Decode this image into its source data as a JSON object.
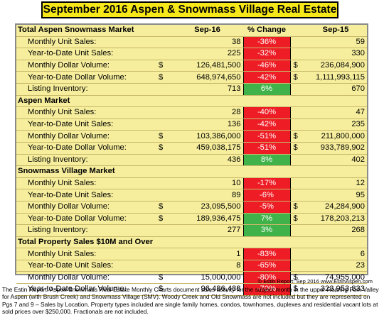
{
  "title": "September 2016 Aspen & Snowmass Village Real Estate",
  "colors": {
    "title_bg": "#f6e71a",
    "table_bg": "#f6ee9c",
    "negative": "#ee1c24",
    "positive": "#3fb34a"
  },
  "sections": [
    {
      "heading": "Total Aspen Snowmass Market",
      "col_current": "Sep-16",
      "col_change": "% Change",
      "col_prior": "Sep-15",
      "rows": [
        {
          "label": "Monthly Unit Sales:",
          "cur_sym": "",
          "current": "38",
          "change": "-36%",
          "trend": "neg",
          "prior_sym": "",
          "prior": "59"
        },
        {
          "label": "Year-to-Date Unit Sales:",
          "cur_sym": "",
          "current": "225",
          "change": "-32%",
          "trend": "neg",
          "prior_sym": "",
          "prior": "330"
        },
        {
          "label": "Monthly Dollar Volume:",
          "cur_sym": "$",
          "current": "126,481,500",
          "change": "-46%",
          "trend": "neg",
          "prior_sym": "$",
          "prior": "236,084,900"
        },
        {
          "label": "Year-to-Date Dollar Volume:",
          "cur_sym": "$",
          "current": "648,974,650",
          "change": "-42%",
          "trend": "neg",
          "prior_sym": "$",
          "prior": "1,111,993,115"
        },
        {
          "label": "Listing Inventory:",
          "cur_sym": "",
          "current": "713",
          "change": "6%",
          "trend": "pos",
          "prior_sym": "",
          "prior": "670"
        }
      ]
    },
    {
      "heading": "Aspen Market",
      "col_current": "",
      "col_change": "",
      "col_prior": "",
      "rows": [
        {
          "label": "Monthly Unit Sales:",
          "cur_sym": "",
          "current": "28",
          "change": "-40%",
          "trend": "neg",
          "prior_sym": "",
          "prior": "47"
        },
        {
          "label": "Year-to-Date Unit Sales:",
          "cur_sym": "",
          "current": "136",
          "change": "-42%",
          "trend": "neg",
          "prior_sym": "",
          "prior": "235"
        },
        {
          "label": "Monthly Dollar Volume:",
          "cur_sym": "$",
          "current": "103,386,000",
          "change": "-51%",
          "trend": "neg",
          "prior_sym": "$",
          "prior": "211,800,000"
        },
        {
          "label": "Year-to-Date Dollar Volume:",
          "cur_sym": "$",
          "current": "459,038,175",
          "change": "-51%",
          "trend": "neg",
          "prior_sym": "$",
          "prior": "933,789,902"
        },
        {
          "label": "Listing Inventory:",
          "cur_sym": "",
          "current": "436",
          "change": "8%",
          "trend": "pos",
          "prior_sym": "",
          "prior": "402"
        }
      ]
    },
    {
      "heading": "Snowmass Village Market",
      "col_current": "",
      "col_change": "",
      "col_prior": "",
      "rows": [
        {
          "label": "Monthly Unit Sales:",
          "cur_sym": "",
          "current": "10",
          "change": "-17%",
          "trend": "neg",
          "prior_sym": "",
          "prior": "12"
        },
        {
          "label": "Year-to-Date Unit Sales:",
          "cur_sym": "",
          "current": "89",
          "change": "-6%",
          "trend": "neg",
          "prior_sym": "",
          "prior": "95"
        },
        {
          "label": "Monthly Dollar Volume:",
          "cur_sym": "$",
          "current": "23,095,500",
          "change": "-5%",
          "trend": "neg",
          "prior_sym": "$",
          "prior": "24,284,900"
        },
        {
          "label": "Year-to-Date Dollar Volume:",
          "cur_sym": "$",
          "current": "189,936,475",
          "change": "7%",
          "trend": "pos",
          "prior_sym": "$",
          "prior": "178,203,213"
        },
        {
          "label": "Listing Inventory:",
          "cur_sym": "",
          "current": "277",
          "change": "3%",
          "trend": "pos",
          "prior_sym": "",
          "prior": "268"
        }
      ]
    },
    {
      "heading": "Total Property Sales $10M and Over",
      "col_current": "",
      "col_change": "",
      "col_prior": "",
      "rows": [
        {
          "label": "Monthly Unit Sales:",
          "cur_sym": "",
          "current": "1",
          "change": "-83%",
          "trend": "neg",
          "prior_sym": "",
          "prior": "6"
        },
        {
          "label": "Year-to-Date Unit Sales:",
          "cur_sym": "",
          "current": "8",
          "change": "-65%",
          "trend": "neg",
          "prior_sym": "",
          "prior": "23"
        },
        {
          "label": "Monthly Dollar Volume:",
          "cur_sym": "$",
          "current": "15,000,000",
          "change": "-80%",
          "trend": "neg",
          "prior_sym": "$",
          "prior": "74,955,000"
        },
        {
          "label": "Year-to-Date Dollar Volume:",
          "cur_sym": "$",
          "current": "96,486,488",
          "change": "-70%",
          "trend": "neg",
          "prior_sym": "$",
          "prior": "323,953,833"
        }
      ]
    }
  ],
  "credit": "© Estin Report: Sep 2016 www.EstinAspen.com",
  "footnote": "The Estin Report: Aspen Snowmass Real Estate Monthly Charts document sales activity for the subject month in the upper Roaring Fork Valley for Aspen (with Brush Creek) and Snowmass Village (SMV). Woody Creek and Old Snowmass are not included but they are represented on Pgs 7 and 9 – Sales by Location. Property types included are single family homes, condos, townhomes, duplexes and residential vacant lots at sold prices over $250,000. Fractionals are not included."
}
